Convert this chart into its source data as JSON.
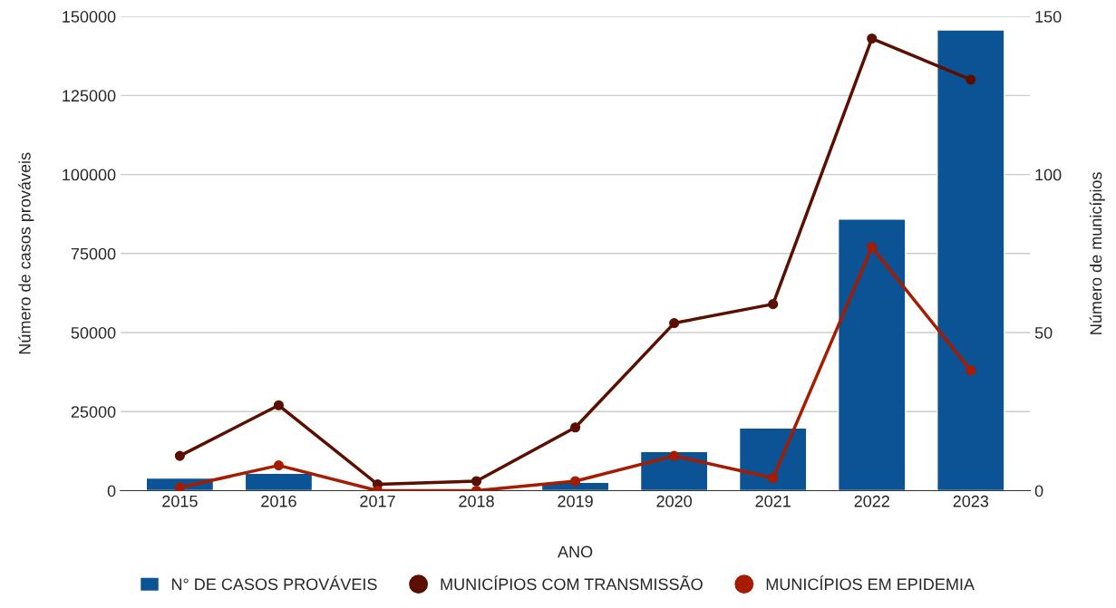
{
  "chart_data": {
    "type": "bar",
    "xlabel": "ANO",
    "ylabel": "Número de casos prováveis",
    "y2label": "Número de municípios",
    "categories": [
      "2015",
      "2016",
      "2017",
      "2018",
      "2019",
      "2020",
      "2021",
      "2022",
      "2023"
    ],
    "series": [
      {
        "name": "N° DE CASOS PROVÁVEIS",
        "color": "#0b5394",
        "values": [
          4000,
          5500,
          null,
          null,
          2600,
          12400,
          19800,
          85900,
          145700
        ]
      },
      {
        "name": "MUNICÍPIOS COM TRANSMISSÃO",
        "type": "line",
        "axis": "y2",
        "color": "#5b0f00",
        "values": [
          11,
          27,
          2,
          3,
          20,
          53,
          59,
          143,
          130
        ]
      },
      {
        "name": "MUNICÍPIOS EM EPIDEMIA",
        "type": "line",
        "axis": "y2",
        "color": "#a61c00",
        "values": [
          1,
          8,
          0,
          0,
          3,
          11,
          4,
          77,
          38
        ]
      }
    ],
    "ylim": [
      0,
      150000
    ],
    "yticks": [
      0,
      25000,
      50000,
      75000,
      100000,
      125000,
      150000
    ],
    "y2lim": [
      0,
      150
    ],
    "y2ticks": [
      0,
      50,
      100,
      150
    ],
    "grid": "y",
    "legend": "bottom",
    "marker": "circle"
  }
}
